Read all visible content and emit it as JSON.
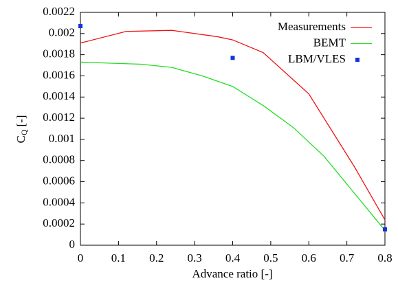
{
  "chart_data": {
    "type": "line",
    "xlabel": "Advance ratio [-]",
    "ylabel": [
      "C",
      "Q",
      "[-]"
    ],
    "xlim": [
      0,
      0.8
    ],
    "ylim": [
      0,
      0.0022
    ],
    "xticks": [
      0,
      0.1,
      0.2,
      0.3,
      0.4,
      0.5,
      0.6,
      0.7,
      0.8
    ],
    "yticks": [
      0,
      0.0002,
      0.0004,
      0.0006,
      0.0008,
      0.001,
      0.0012,
      0.0014,
      0.0016,
      0.0018,
      0.002,
      0.0022
    ],
    "legend": "upper right",
    "series": [
      {
        "name": "Measurements",
        "color": "#ee1111",
        "style": "line",
        "x": [
          0,
          0.12,
          0.24,
          0.36,
          0.4,
          0.48,
          0.6,
          0.72,
          0.8
        ],
        "values": [
          0.00191,
          0.00202,
          0.00203,
          0.00197,
          0.00194,
          0.00182,
          0.00143,
          0.00074,
          0.00024
        ]
      },
      {
        "name": "BEMT",
        "color": "#22dd22",
        "style": "line",
        "x": [
          0,
          0.08,
          0.16,
          0.24,
          0.32,
          0.4,
          0.48,
          0.56,
          0.64,
          0.72,
          0.8
        ],
        "values": [
          0.00173,
          0.00172,
          0.00171,
          0.00168,
          0.0016,
          0.0015,
          0.00132,
          0.00111,
          0.00084,
          0.00049,
          0.00014
        ]
      },
      {
        "name": "LBM/VLES",
        "color": "#1133dd",
        "style": "markers",
        "x": [
          0,
          0.4,
          0.8
        ],
        "values": [
          0.00207,
          0.00177,
          0.00015
        ]
      }
    ]
  }
}
